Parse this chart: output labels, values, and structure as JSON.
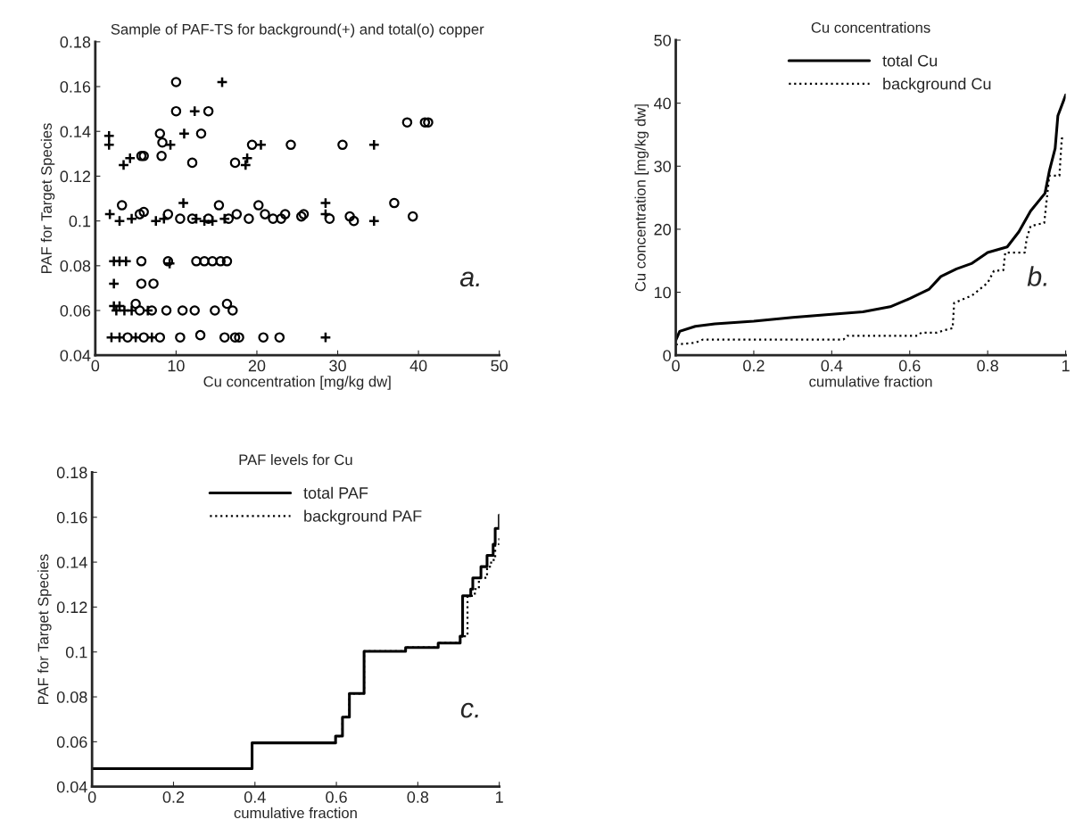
{
  "chart_data": [
    {
      "type": "scatter",
      "title": "Sample of PAF-TS for background(+) and total(o) copper",
      "xlabel": "Cu concentration [mg/kg dw]",
      "ylabel": "PAF for Target Species",
      "xlim": [
        0,
        50
      ],
      "xticks": [
        0,
        10,
        20,
        30,
        40,
        50
      ],
      "ylim": [
        0.04,
        0.18
      ],
      "yticks": [
        0.04,
        0.06,
        0.08,
        0.1,
        0.12,
        0.14,
        0.16,
        0.18
      ],
      "grid": false,
      "legend": false,
      "annotations": [
        "a."
      ],
      "series": [
        {
          "color": "#000000",
          "marker": "circle",
          "x": [
            10,
            10,
            14,
            8,
            13.1,
            8.3,
            8.2,
            5.7,
            6,
            12,
            17.3,
            19.4,
            24.2,
            30.6,
            38.6,
            40.8,
            41.2,
            3.3,
            5.5,
            6,
            9,
            10.5,
            12,
            14,
            15.3,
            16.5,
            17.5,
            19,
            20.2,
            21,
            22,
            23,
            23.5,
            25.5,
            25.8,
            29,
            31.5,
            32,
            37,
            39.3,
            5.7,
            9,
            12.5,
            13.5,
            14.5,
            15.5,
            16.3,
            5.7,
            7.2,
            5,
            5.5,
            7,
            8.8,
            10.8,
            12.3,
            14.8,
            16.3,
            17,
            4,
            6,
            8,
            10.5,
            13,
            16,
            17.3,
            17.8,
            20.8,
            22.8
          ],
          "values": [
            0.162,
            0.149,
            0.149,
            0.139,
            0.139,
            0.135,
            0.129,
            0.129,
            0.129,
            0.126,
            0.126,
            0.134,
            0.134,
            0.134,
            0.144,
            0.144,
            0.144,
            0.107,
            0.103,
            0.104,
            0.103,
            0.101,
            0.101,
            0.101,
            0.107,
            0.101,
            0.103,
            0.101,
            0.107,
            0.103,
            0.101,
            0.101,
            0.103,
            0.102,
            0.103,
            0.101,
            0.102,
            0.1,
            0.108,
            0.102,
            0.082,
            0.082,
            0.082,
            0.082,
            0.082,
            0.082,
            0.082,
            0.072,
            0.072,
            0.063,
            0.06,
            0.06,
            0.06,
            0.06,
            0.06,
            0.06,
            0.063,
            0.06,
            0.048,
            0.048,
            0.048,
            0.048,
            0.049,
            0.048,
            0.048,
            0.048,
            0.048,
            0.048
          ]
        },
        {
          "color": "#000000",
          "marker": "cross",
          "x": [
            15.7,
            12.3,
            11,
            1.7,
            1.7,
            9.3,
            4.3,
            3.5,
            18.8,
            18.6,
            20.5,
            34.5,
            1.8,
            3,
            4.5,
            7.5,
            8.5,
            10.9,
            12.5,
            13.5,
            14.5,
            16,
            28.5,
            28.5,
            34.5,
            2.3,
            3,
            3.8,
            9.2,
            2.3,
            2.3,
            2.6,
            3,
            3.6,
            4.5,
            6.5,
            2,
            3,
            5,
            7,
            28.5
          ],
          "values": [
            0.162,
            0.149,
            0.139,
            0.138,
            0.134,
            0.134,
            0.128,
            0.125,
            0.128,
            0.125,
            0.134,
            0.134,
            0.103,
            0.1,
            0.101,
            0.1,
            0.101,
            0.108,
            0.101,
            0.1,
            0.1,
            0.101,
            0.108,
            0.103,
            0.1,
            0.082,
            0.082,
            0.082,
            0.081,
            0.072,
            0.062,
            0.06,
            0.062,
            0.06,
            0.06,
            0.06,
            0.048,
            0.048,
            0.048,
            0.048,
            0.048
          ]
        }
      ]
    },
    {
      "type": "line",
      "title": "Cu concentrations",
      "xlabel": "cumulative fraction",
      "ylabel": "Cu concentration [mg/kg dw]",
      "xlim": [
        0,
        1
      ],
      "xticks": [
        0,
        0.2,
        0.4,
        0.6,
        0.8,
        1
      ],
      "ylim": [
        0,
        50
      ],
      "yticks": [
        0,
        10,
        20,
        30,
        40,
        50
      ],
      "grid": false,
      "legend": "top",
      "annotations": [
        "b."
      ],
      "series": [
        {
          "name": "total Cu",
          "color": "#000000",
          "line_style": "solid",
          "x": [
            0,
            0.01,
            0.05,
            0.1,
            0.2,
            0.3,
            0.4,
            0.48,
            0.55,
            0.6,
            0.65,
            0.68,
            0.72,
            0.76,
            0.8,
            0.85,
            0.88,
            0.91,
            0.947,
            0.958,
            0.973,
            0.98,
            1.0
          ],
          "values": [
            2.4,
            3.8,
            4.6,
            5.0,
            5.4,
            6.0,
            6.5,
            6.9,
            7.7,
            9.0,
            10.5,
            12.5,
            13.7,
            14.6,
            16.3,
            17.2,
            19.6,
            22.9,
            25.7,
            29.2,
            32.8,
            38,
            41.3
          ]
        },
        {
          "name": "background Cu",
          "color": "#000000",
          "line_style": "dotted",
          "x": [
            0,
            0.05,
            0.07,
            0.1,
            0.43,
            0.44,
            0.62,
            0.63,
            0.67,
            0.69,
            0.71,
            0.714,
            0.76,
            0.8,
            0.816,
            0.84,
            0.845,
            0.895,
            0.9,
            0.91,
            0.945,
            0.958,
            0.984,
            0.99,
            1.0
          ],
          "values": [
            1.7,
            2.0,
            2.5,
            2.5,
            2.5,
            3.1,
            3.1,
            3.6,
            3.6,
            4.0,
            4.3,
            8.3,
            9.5,
            11.5,
            13.4,
            13.5,
            16.3,
            16.3,
            18.5,
            20.5,
            21,
            28.5,
            28.5,
            34.4,
            34.4
          ]
        }
      ]
    },
    {
      "type": "step",
      "title": "PAF levels for Cu",
      "xlabel": "cumulative fraction",
      "ylabel": "PAF for Target Species",
      "xlim": [
        0,
        1
      ],
      "xticks": [
        0,
        0.2,
        0.4,
        0.6,
        0.8,
        1
      ],
      "ylim": [
        0.04,
        0.18
      ],
      "yticks": [
        0.04,
        0.06,
        0.08,
        0.1,
        0.12,
        0.14,
        0.16,
        0.18
      ],
      "grid": false,
      "legend": "top",
      "annotations": [
        "c."
      ],
      "series": [
        {
          "name": "total PAF",
          "color": "#000000",
          "line_style": "solid",
          "x": [
            0,
            0.393,
            0.598,
            0.615,
            0.632,
            0.668,
            0.77,
            0.85,
            0.904,
            0.91,
            0.93,
            0.935,
            0.955,
            0.97,
            0.985,
            0.99,
            1.0
          ],
          "values": [
            0.048,
            0.0595,
            0.0625,
            0.071,
            0.0815,
            0.1003,
            0.102,
            0.104,
            0.107,
            0.125,
            0.128,
            0.133,
            0.138,
            0.143,
            0.148,
            0.155,
            0.161
          ]
        },
        {
          "name": "background PAF",
          "color": "#000000",
          "line_style": "dotted",
          "x": [
            0,
            0.393,
            0.598,
            0.615,
            0.632,
            0.668,
            0.77,
            0.85,
            0.904,
            0.922,
            0.94,
            0.95,
            0.97,
            0.98,
            0.99,
            1.0
          ],
          "values": [
            0.048,
            0.0595,
            0.0625,
            0.071,
            0.0815,
            0.1003,
            0.102,
            0.104,
            0.107,
            0.125,
            0.128,
            0.133,
            0.138,
            0.141,
            0.148,
            0.151
          ]
        }
      ]
    }
  ]
}
